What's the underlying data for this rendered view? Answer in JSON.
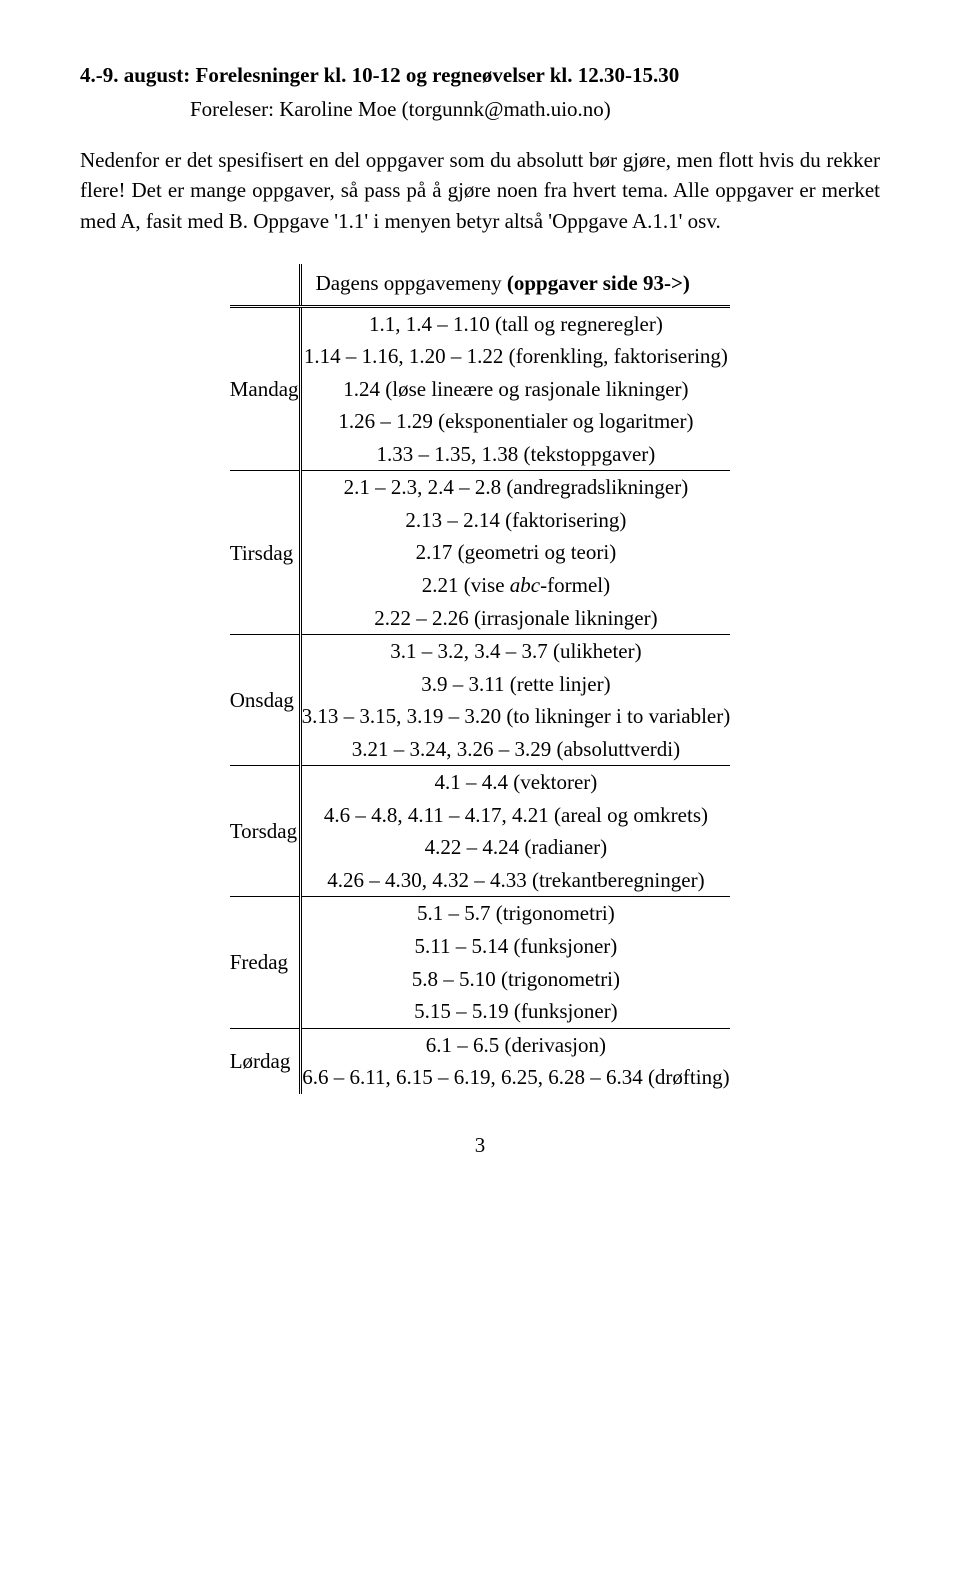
{
  "heading": {
    "line1_prefix": "4.-9. august: Forelesninger kl. 10-12 og regneøvelser kl. 12.30-15.30",
    "line2": "Foreleser: Karoline Moe (torgunnk@math.uio.no)"
  },
  "intro": "Nedenfor er det spesifisert en del oppgaver som du absolutt bør gjøre, men flott hvis du rekker flere! Det er mange oppgaver, så pass på å gjøre noen fra hvert tema. Alle oppgaver er merket med A, fasit med B. Oppgave '1.1' i menyen betyr altså 'Oppgave A.1.1' osv.",
  "table_header": "Dagens oppgavemeny (oppgaver side 93->)",
  "days": {
    "mandag": {
      "label": "Mandag",
      "lines": [
        "1.1, 1.4 – 1.10 (tall og regneregler)",
        "1.14 – 1.16, 1.20 – 1.22 (forenkling, faktorisering)",
        "1.24 (løse lineære og rasjonale likninger)",
        "1.26 – 1.29 (eksponentialer og logaritmer)",
        "1.33 – 1.35, 1.38 (tekstoppgaver)"
      ]
    },
    "tirsdag": {
      "label": "Tirsdag",
      "lines": [
        "2.1 – 2.3, 2.4 – 2.8 (andregradslikninger)",
        "2.13 – 2.14 (faktorisering)",
        "2.17 (geometri og teori)",
        "2.21 (vise abc-formel)",
        "2.22 – 2.26 (irrasjonale likninger)"
      ],
      "abc_line_index": 3
    },
    "onsdag": {
      "label": "Onsdag",
      "lines": [
        "3.1 – 3.2, 3.4 – 3.7 (ulikheter)",
        "3.9 – 3.11 (rette linjer)",
        "3.13 – 3.15, 3.19 – 3.20 (to likninger i to variabler)",
        "3.21 – 3.24, 3.26 – 3.29 (absoluttverdi)"
      ]
    },
    "torsdag": {
      "label": "Torsdag",
      "lines": [
        "4.1 – 4.4 (vektorer)",
        "4.6 – 4.8, 4.11 – 4.17, 4.21 (areal og omkrets)",
        "4.22 – 4.24 (radianer)",
        "4.26 – 4.30, 4.32 – 4.33 (trekantberegninger)"
      ]
    },
    "fredag": {
      "label": "Fredag",
      "lines": [
        "5.1 – 5.7 (trigonometri)",
        "5.11 – 5.14 (funksjoner)",
        "5.8 – 5.10 (trigonometri)",
        "5.15 – 5.19 (funksjoner)"
      ]
    },
    "lordag": {
      "label": "Lørdag",
      "lines": [
        "6.1 – 6.5 (derivasjon)",
        "6.6 – 6.11, 6.15 – 6.19, 6.25, 6.28 – 6.34 (drøfting)"
      ]
    }
  },
  "page_number": "3"
}
